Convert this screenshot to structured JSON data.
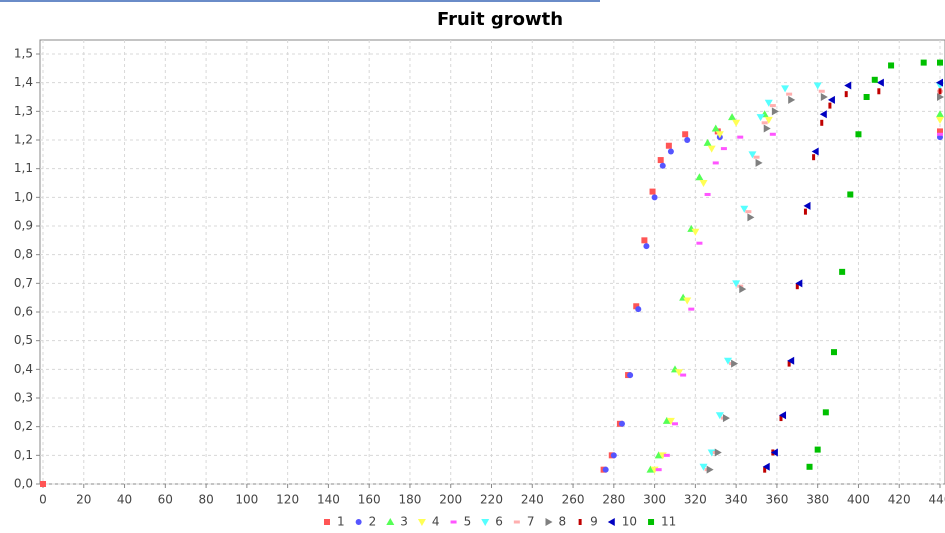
{
  "chart_data": {
    "type": "scatter",
    "title": "Fruit growth",
    "xlim": [
      0,
      440
    ],
    "ylim": [
      0,
      1.5
    ],
    "xticks": [
      0,
      20,
      40,
      60,
      80,
      100,
      120,
      140,
      160,
      180,
      200,
      220,
      240,
      260,
      280,
      300,
      320,
      340,
      360,
      380,
      400,
      420,
      440
    ],
    "yticks": [
      {
        "value": 0,
        "label": "0,0"
      },
      {
        "value": 0.1,
        "label": "0,1"
      },
      {
        "value": 0.2,
        "label": "0,2"
      },
      {
        "value": 0.3,
        "label": "0,3"
      },
      {
        "value": 0.4,
        "label": "0,4"
      },
      {
        "value": 0.5,
        "label": "0,5"
      },
      {
        "value": 0.6,
        "label": "0,6"
      },
      {
        "value": 0.7,
        "label": "0,7"
      },
      {
        "value": 0.8,
        "label": "0,8"
      },
      {
        "value": 0.9,
        "label": "0,9"
      },
      {
        "value": 1.0,
        "label": "1,0"
      },
      {
        "value": 1.1,
        "label": "1,1"
      },
      {
        "value": 1.2,
        "label": "1,2"
      },
      {
        "value": 1.3,
        "label": "1,3"
      },
      {
        "value": 1.4,
        "label": "1,4"
      },
      {
        "value": 1.5,
        "label": "1,5"
      }
    ],
    "grid": true,
    "series": [
      {
        "name": "1",
        "color": "#ff5555",
        "shape": "square",
        "x": [
          0,
          275,
          279,
          283,
          287,
          291,
          295,
          299,
          303,
          307,
          315,
          331,
          440
        ],
        "values": [
          0,
          0.05,
          0.1,
          0.21,
          0.38,
          0.62,
          0.85,
          1.02,
          1.13,
          1.18,
          1.22,
          1.23,
          1.23
        ]
      },
      {
        "name": "2",
        "color": "#5555ff",
        "shape": "circle",
        "x": [
          276,
          280,
          284,
          288,
          292,
          296,
          300,
          304,
          308,
          316,
          332,
          440
        ],
        "values": [
          0.05,
          0.1,
          0.21,
          0.38,
          0.61,
          0.83,
          1.0,
          1.11,
          1.16,
          1.2,
          1.21,
          1.21
        ]
      },
      {
        "name": "3",
        "color": "#55ff55",
        "shape": "triangle-up",
        "x": [
          298,
          302,
          306,
          310,
          314,
          318,
          322,
          326,
          330,
          338,
          354,
          440
        ],
        "values": [
          0.05,
          0.1,
          0.22,
          0.4,
          0.65,
          0.89,
          1.07,
          1.19,
          1.24,
          1.28,
          1.29,
          1.29
        ]
      },
      {
        "name": "4",
        "color": "#ffff55",
        "shape": "triangle-down",
        "x": [
          300,
          304,
          308,
          312,
          316,
          320,
          324,
          328,
          332,
          340,
          356,
          440
        ],
        "values": [
          0.05,
          0.1,
          0.22,
          0.39,
          0.64,
          0.88,
          1.05,
          1.17,
          1.22,
          1.26,
          1.27,
          1.27
        ]
      },
      {
        "name": "5",
        "color": "#ff55ff",
        "shape": "rect-h",
        "x": [
          302,
          306,
          310,
          314,
          318,
          322,
          326,
          330,
          334,
          342,
          358,
          440
        ],
        "values": [
          0.05,
          0.1,
          0.21,
          0.38,
          0.61,
          0.84,
          1.01,
          1.12,
          1.17,
          1.21,
          1.22,
          1.22
        ]
      },
      {
        "name": "6",
        "color": "#55ffff",
        "shape": "triangle-down",
        "x": [
          324,
          328,
          332,
          336,
          340,
          344,
          348,
          352,
          356,
          364,
          380,
          440
        ],
        "values": [
          0.06,
          0.11,
          0.24,
          0.43,
          0.7,
          0.96,
          1.15,
          1.28,
          1.33,
          1.38,
          1.39,
          1.39
        ]
      },
      {
        "name": "7",
        "color": "#ffafaf",
        "shape": "rect-h",
        "x": [
          326,
          330,
          334,
          338,
          342,
          346,
          350,
          354,
          358,
          366,
          382,
          440
        ],
        "values": [
          0.05,
          0.11,
          0.23,
          0.42,
          0.69,
          0.95,
          1.14,
          1.26,
          1.32,
          1.36,
          1.37,
          1.37
        ]
      },
      {
        "name": "8",
        "color": "#808080",
        "shape": "triangle-right",
        "x": [
          327,
          331,
          335,
          339,
          343,
          347,
          351,
          355,
          359,
          367,
          383,
          440
        ],
        "values": [
          0.05,
          0.11,
          0.23,
          0.42,
          0.68,
          0.93,
          1.12,
          1.24,
          1.3,
          1.34,
          1.35,
          1.35
        ]
      },
      {
        "name": "9",
        "color": "#c00000",
        "shape": "rect-v",
        "x": [
          354,
          358,
          362,
          366,
          370,
          374,
          378,
          382,
          386,
          394,
          410,
          440
        ],
        "values": [
          0.05,
          0.11,
          0.23,
          0.42,
          0.69,
          0.95,
          1.14,
          1.26,
          1.32,
          1.36,
          1.37,
          1.37
        ]
      },
      {
        "name": "10",
        "color": "#0000c0",
        "shape": "triangle-left",
        "x": [
          355,
          359,
          363,
          367,
          371,
          375,
          379,
          383,
          387,
          395,
          411,
          440
        ],
        "values": [
          0.06,
          0.11,
          0.24,
          0.43,
          0.7,
          0.97,
          1.16,
          1.29,
          1.34,
          1.39,
          1.4,
          1.4
        ]
      },
      {
        "name": "11",
        "color": "#00c000",
        "shape": "square",
        "x": [
          376,
          380,
          384,
          388,
          392,
          396,
          400,
          404,
          408,
          416,
          432,
          440
        ],
        "values": [
          0.06,
          0.12,
          0.25,
          0.46,
          0.74,
          1.01,
          1.22,
          1.35,
          1.41,
          1.46,
          1.47,
          1.47
        ]
      }
    ]
  }
}
